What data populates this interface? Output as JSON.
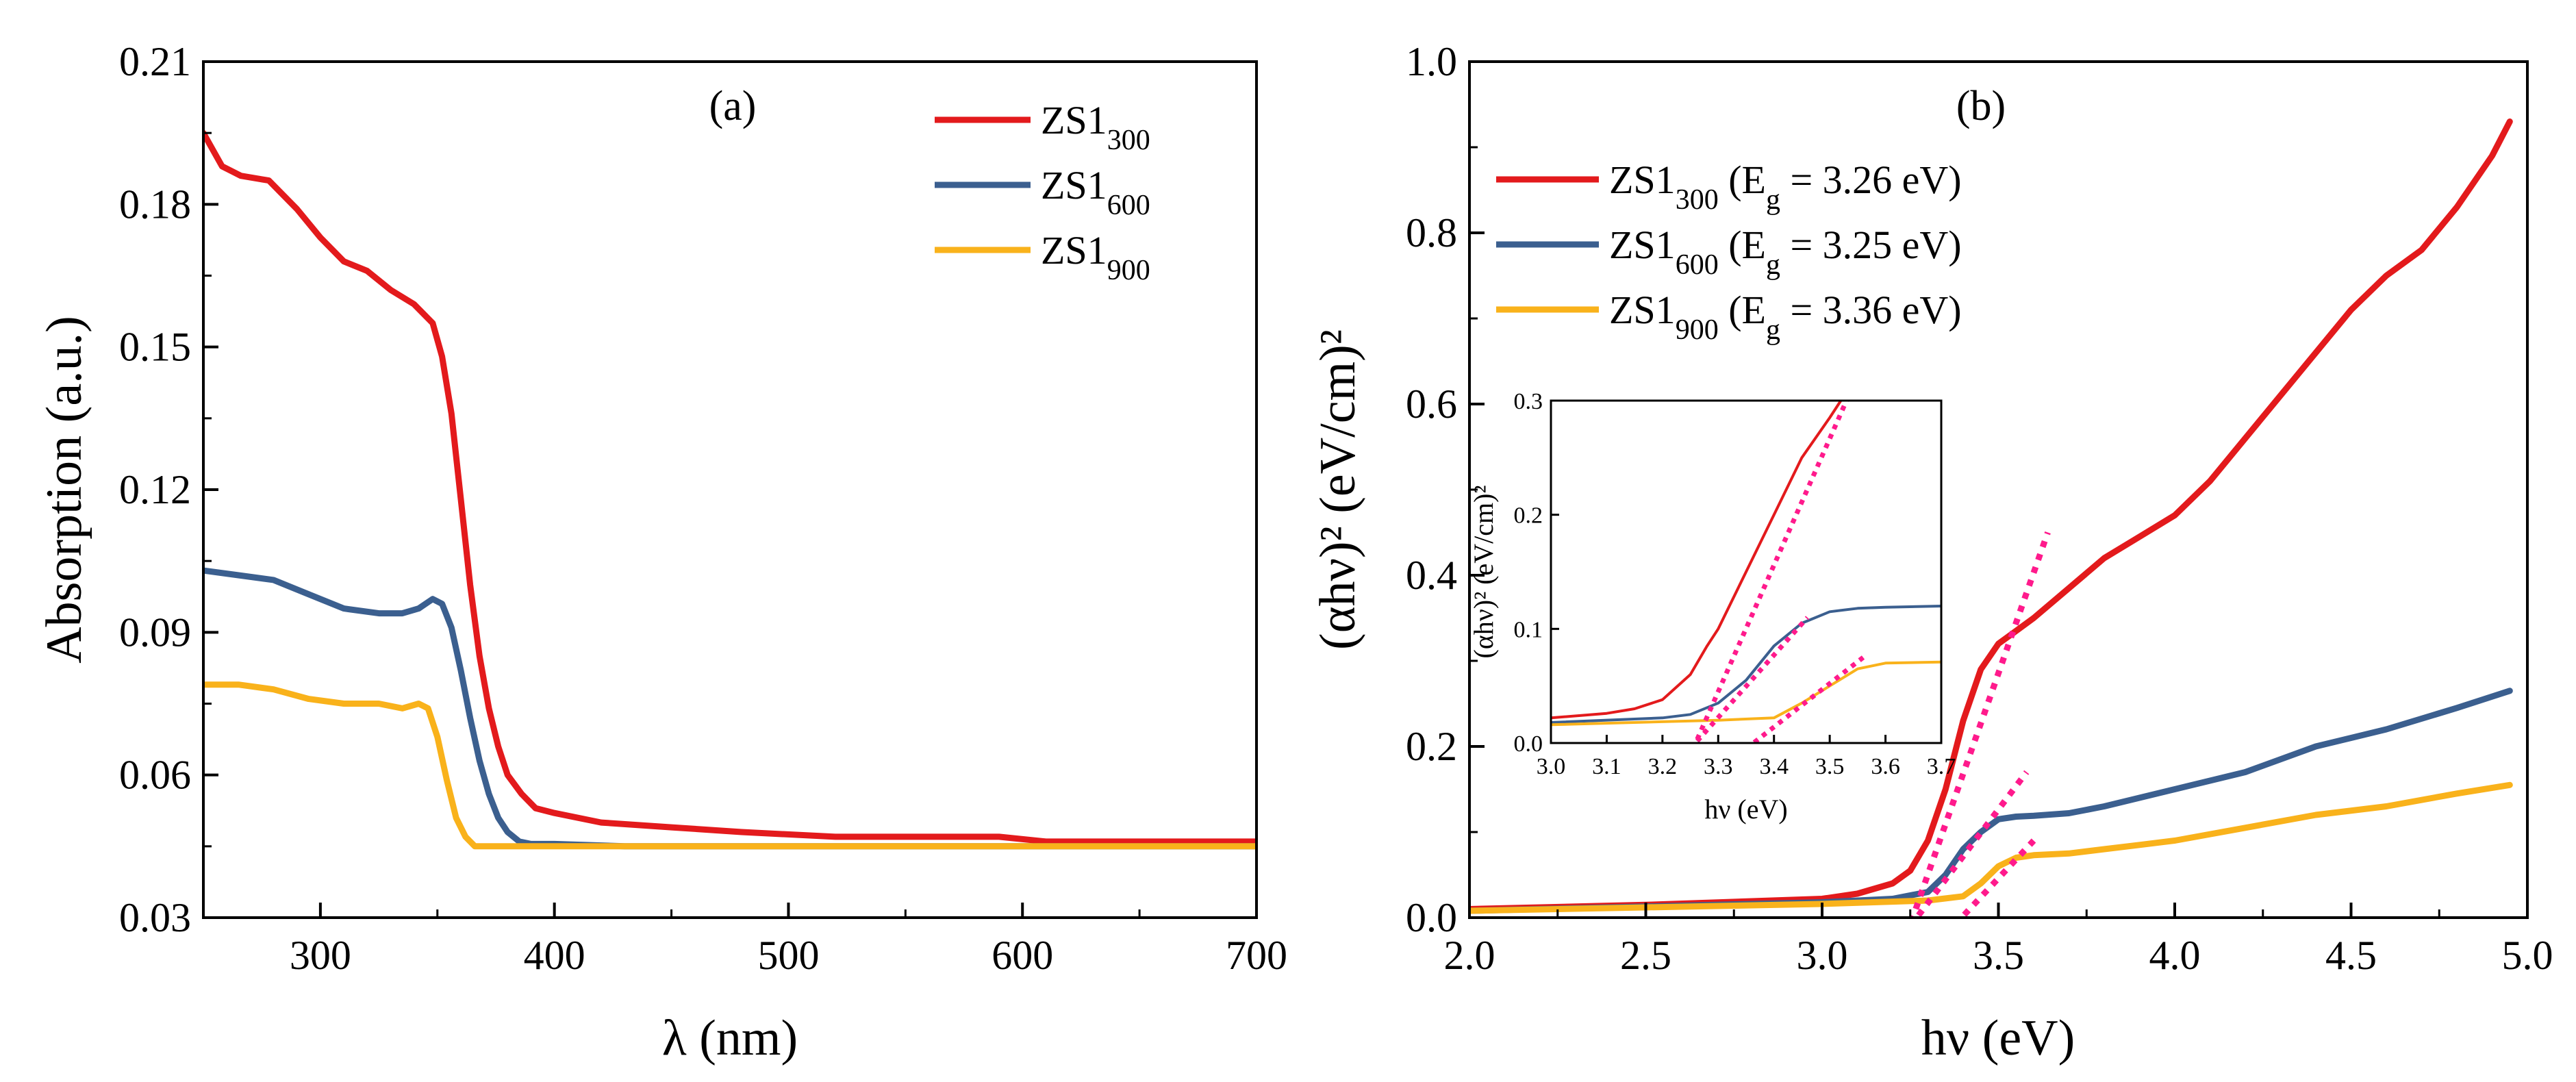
{
  "colors": {
    "ZS1_300": "#e31a1c",
    "ZS1_600": "#3b5f8f",
    "ZS1_900": "#f9b21b",
    "fit": "#ff1a8c"
  },
  "chart_data": [
    {
      "id": "a",
      "type": "line",
      "panel_label": "(a)",
      "xlabel": "λ (nm)",
      "ylabel": "Absorption (a.u.)",
      "xlim": [
        250,
        700
      ],
      "ylim": [
        0.03,
        0.21
      ],
      "xticks": [
        300,
        400,
        500,
        600,
        700
      ],
      "yticks": [
        0.03,
        0.06,
        0.09,
        0.12,
        0.15,
        0.18,
        0.21
      ],
      "ytick_labels": [
        "0.03",
        "0.06",
        "0.09",
        "0.12",
        "0.15",
        "0.18",
        "0.21"
      ],
      "legend_position": "top-right",
      "series": [
        {
          "name": "ZS1",
          "sub": "300",
          "color_key": "ZS1_300",
          "x": [
            250,
            258,
            266,
            278,
            290,
            300,
            310,
            320,
            330,
            340,
            348,
            352,
            356,
            360,
            364,
            368,
            372,
            376,
            380,
            386,
            392,
            400,
            420,
            450,
            480,
            520,
            560,
            590,
            610,
            640,
            670,
            700
          ],
          "y": [
            0.195,
            0.188,
            0.186,
            0.185,
            0.179,
            0.173,
            0.168,
            0.166,
            0.162,
            0.159,
            0.155,
            0.148,
            0.136,
            0.118,
            0.1,
            0.085,
            0.074,
            0.066,
            0.06,
            0.056,
            0.053,
            0.052,
            0.05,
            0.049,
            0.048,
            0.047,
            0.047,
            0.047,
            0.046,
            0.046,
            0.046,
            0.046
          ]
        },
        {
          "name": "ZS1",
          "sub": "600",
          "color_key": "ZS1_600",
          "x": [
            250,
            265,
            280,
            295,
            310,
            325,
            335,
            342,
            348,
            352,
            356,
            360,
            364,
            368,
            372,
            376,
            380,
            385,
            390,
            400,
            430,
            500,
            600,
            700
          ],
          "y": [
            0.103,
            0.102,
            0.101,
            0.098,
            0.095,
            0.094,
            0.094,
            0.095,
            0.097,
            0.096,
            0.091,
            0.082,
            0.072,
            0.063,
            0.056,
            0.051,
            0.048,
            0.046,
            0.0455,
            0.0455,
            0.045,
            0.045,
            0.045,
            0.045
          ]
        },
        {
          "name": "ZS1",
          "sub": "900",
          "color_key": "ZS1_900",
          "x": [
            250,
            265,
            280,
            295,
            310,
            325,
            335,
            342,
            346,
            350,
            354,
            358,
            362,
            366,
            370,
            380,
            400,
            500,
            600,
            700
          ],
          "y": [
            0.079,
            0.079,
            0.078,
            0.076,
            0.075,
            0.075,
            0.074,
            0.075,
            0.074,
            0.068,
            0.059,
            0.051,
            0.047,
            0.045,
            0.045,
            0.045,
            0.045,
            0.045,
            0.045,
            0.045
          ]
        }
      ]
    },
    {
      "id": "b",
      "type": "line",
      "panel_label": "(b)",
      "xlabel": "hν (eV)",
      "ylabel": "(αhν)² (eV/cm)²",
      "xlim": [
        2.0,
        5.0
      ],
      "ylim": [
        0.0,
        1.0
      ],
      "xticks": [
        2.0,
        2.5,
        3.0,
        3.5,
        4.0,
        4.5,
        5.0
      ],
      "xtick_labels": [
        "2.0",
        "2.5",
        "3.0",
        "3.5",
        "4.0",
        "4.5",
        "5.0"
      ],
      "yticks": [
        0.0,
        0.2,
        0.4,
        0.6,
        0.8,
        1.0
      ],
      "ytick_labels": [
        "0.0",
        "0.2",
        "0.4",
        "0.6",
        "0.8",
        "1.0"
      ],
      "legend_position": "top-left",
      "series": [
        {
          "name": "ZS1",
          "sub": "300",
          "eg_label": " (E",
          "eg_sub": "g",
          "eg_value": " = 3.26 eV)",
          "color_key": "ZS1_300",
          "x": [
            2.0,
            2.5,
            3.0,
            3.1,
            3.2,
            3.25,
            3.3,
            3.35,
            3.4,
            3.45,
            3.5,
            3.55,
            3.6,
            3.7,
            3.8,
            3.9,
            4.0,
            4.1,
            4.2,
            4.3,
            4.4,
            4.5,
            4.6,
            4.7,
            4.8,
            4.9,
            4.95
          ],
          "y": [
            0.01,
            0.015,
            0.022,
            0.028,
            0.04,
            0.055,
            0.09,
            0.15,
            0.23,
            0.29,
            0.32,
            0.335,
            0.35,
            0.385,
            0.42,
            0.445,
            0.47,
            0.51,
            0.56,
            0.61,
            0.66,
            0.71,
            0.75,
            0.78,
            0.83,
            0.89,
            0.93
          ]
        },
        {
          "name": "ZS1",
          "sub": "600",
          "eg_label": " (E",
          "eg_sub": "g",
          "eg_value": " = 3.25 eV)",
          "color_key": "ZS1_600",
          "x": [
            2.0,
            2.5,
            3.0,
            3.2,
            3.3,
            3.35,
            3.4,
            3.45,
            3.5,
            3.55,
            3.6,
            3.7,
            3.8,
            3.9,
            4.0,
            4.2,
            4.4,
            4.6,
            4.8,
            4.95
          ],
          "y": [
            0.008,
            0.013,
            0.018,
            0.022,
            0.03,
            0.05,
            0.08,
            0.1,
            0.115,
            0.118,
            0.119,
            0.122,
            0.13,
            0.14,
            0.15,
            0.17,
            0.2,
            0.22,
            0.245,
            0.265
          ]
        },
        {
          "name": "ZS1",
          "sub": "900",
          "eg_label": " (E",
          "eg_sub": "g",
          "eg_value": " = 3.36 eV)",
          "color_key": "ZS1_900",
          "x": [
            2.0,
            2.5,
            3.0,
            3.3,
            3.4,
            3.45,
            3.5,
            3.55,
            3.6,
            3.7,
            3.8,
            3.9,
            4.0,
            4.2,
            4.4,
            4.6,
            4.8,
            4.95
          ],
          "y": [
            0.008,
            0.012,
            0.016,
            0.02,
            0.025,
            0.04,
            0.06,
            0.07,
            0.073,
            0.075,
            0.08,
            0.085,
            0.09,
            0.105,
            0.12,
            0.13,
            0.145,
            0.155
          ]
        }
      ],
      "tangent_fits": [
        {
          "x": [
            3.24,
            3.64
          ],
          "y": [
            -0.02,
            0.45
          ]
        },
        {
          "x": [
            3.25,
            3.58
          ],
          "y": [
            -0.01,
            0.17
          ]
        },
        {
          "x": [
            3.35,
            3.6
          ],
          "y": [
            -0.02,
            0.09
          ]
        }
      ],
      "inset": {
        "xlabel": "hν (eV)",
        "ylabel": "(αhν)² (eV/cm)²",
        "xlim": [
          3.0,
          3.7
        ],
        "ylim": [
          0.0,
          0.3
        ],
        "xticks": [
          3.0,
          3.1,
          3.2,
          3.3,
          3.4,
          3.5,
          3.6,
          3.7
        ],
        "xtick_labels": [
          "3.0",
          "3.1",
          "3.2",
          "3.3",
          "3.4",
          "3.5",
          "3.6",
          "3.7"
        ],
        "yticks": [
          0.0,
          0.1,
          0.2,
          0.3
        ],
        "ytick_labels": [
          "0.0",
          "0.1",
          "0.2",
          "0.3"
        ],
        "series": [
          {
            "color_key": "ZS1_300",
            "x": [
              3.0,
              3.1,
              3.15,
              3.2,
              3.25,
              3.28,
              3.3,
              3.35,
              3.4,
              3.45,
              3.5,
              3.52
            ],
            "y": [
              0.022,
              0.026,
              0.03,
              0.038,
              0.06,
              0.085,
              0.1,
              0.15,
              0.2,
              0.25,
              0.285,
              0.3
            ]
          },
          {
            "color_key": "ZS1_600",
            "x": [
              3.0,
              3.2,
              3.25,
              3.3,
              3.35,
              3.4,
              3.45,
              3.5,
              3.55,
              3.6,
              3.7
            ],
            "y": [
              0.018,
              0.022,
              0.025,
              0.035,
              0.055,
              0.085,
              0.105,
              0.115,
              0.118,
              0.119,
              0.12
            ]
          },
          {
            "color_key": "ZS1_900",
            "x": [
              3.0,
              3.3,
              3.4,
              3.45,
              3.5,
              3.55,
              3.6,
              3.7
            ],
            "y": [
              0.016,
              0.02,
              0.022,
              0.035,
              0.05,
              0.065,
              0.07,
              0.071
            ]
          }
        ],
        "tangent_fits": [
          {
            "x": [
              3.255,
              3.53
            ],
            "y": [
              -0.005,
              0.3
            ]
          },
          {
            "x": [
              3.25,
              3.46
            ],
            "y": [
              -0.005,
              0.11
            ]
          },
          {
            "x": [
              3.35,
              3.56
            ],
            "y": [
              -0.005,
              0.075
            ]
          }
        ]
      }
    }
  ]
}
